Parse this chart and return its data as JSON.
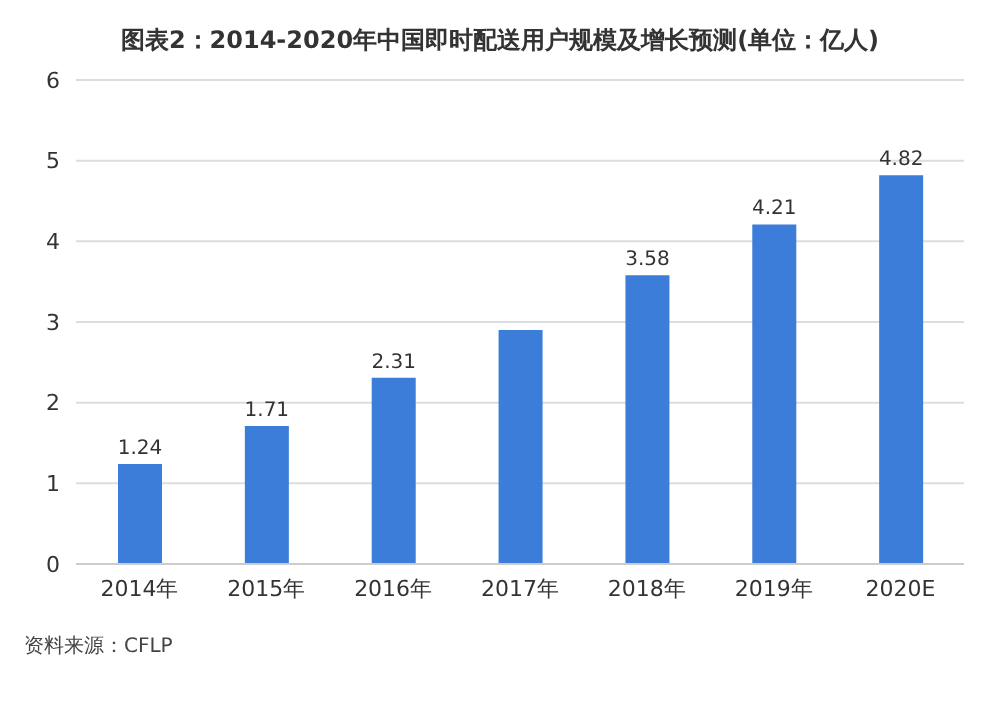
{
  "chart_data": {
    "type": "bar",
    "title": "图表2：2014-2020年中国即时配送用户规模及增长预测(单位：亿人)",
    "categories": [
      "2014年",
      "2015年",
      "2016年",
      "2017年",
      "2018年",
      "2019年",
      "2020E"
    ],
    "values": [
      1.24,
      1.71,
      2.31,
      2.9,
      3.58,
      4.21,
      4.82
    ],
    "value_labels": [
      "1.24",
      "1.71",
      "2.31",
      null,
      "3.58",
      "4.21",
      "4.82"
    ],
    "color": "#3b7dd8",
    "ylim": [
      0,
      6
    ],
    "yticks": [
      0,
      1,
      2,
      3,
      4,
      5,
      6
    ],
    "grid": "y",
    "annotations": [
      "资料来源：CFLP"
    ]
  }
}
